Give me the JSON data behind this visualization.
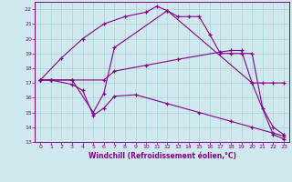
{
  "xlabel": "Windchill (Refroidissement éolien,°C)",
  "background_color": "#cfe9ef",
  "grid_color": "#aad4d8",
  "line_color": "#880088",
  "xlim": [
    -0.5,
    23.5
  ],
  "ylim": [
    13,
    22.5
  ],
  "yticks": [
    13,
    14,
    15,
    16,
    17,
    18,
    19,
    20,
    21,
    22
  ],
  "xticks": [
    0,
    1,
    2,
    3,
    4,
    5,
    6,
    7,
    8,
    9,
    10,
    11,
    12,
    13,
    14,
    15,
    16,
    17,
    18,
    19,
    20,
    21,
    22,
    23
  ],
  "line1_x": [
    0,
    2,
    4,
    6,
    8,
    10,
    11,
    12,
    13,
    14,
    15,
    16,
    17,
    18,
    19,
    20,
    21,
    22,
    23
  ],
  "line1_y": [
    17.2,
    18.7,
    20.0,
    21.0,
    21.5,
    21.8,
    22.2,
    21.9,
    21.5,
    21.5,
    21.5,
    20.3,
    19.0,
    19.0,
    19.0,
    19.0,
    15.3,
    14.0,
    13.5
  ],
  "line2_x": [
    0,
    1,
    3,
    6,
    7,
    10,
    13,
    17,
    18,
    19,
    20,
    21,
    22,
    23
  ],
  "line2_y": [
    17.2,
    17.2,
    17.2,
    17.2,
    17.8,
    18.2,
    18.6,
    19.1,
    19.2,
    19.2,
    17.0,
    17.0,
    17.0,
    17.0
  ],
  "line3_x": [
    0,
    1,
    3,
    5,
    6,
    7,
    12,
    20,
    22,
    23
  ],
  "line3_y": [
    17.2,
    17.2,
    17.2,
    15.0,
    16.3,
    19.4,
    21.9,
    17.0,
    13.5,
    13.2
  ],
  "line4_x": [
    0,
    1,
    3,
    4,
    5,
    6,
    7,
    9,
    12,
    15,
    18,
    20,
    22,
    23
  ],
  "line4_y": [
    17.2,
    17.2,
    16.9,
    16.5,
    14.8,
    15.3,
    16.1,
    16.2,
    15.6,
    15.0,
    14.4,
    14.0,
    13.6,
    13.4
  ]
}
